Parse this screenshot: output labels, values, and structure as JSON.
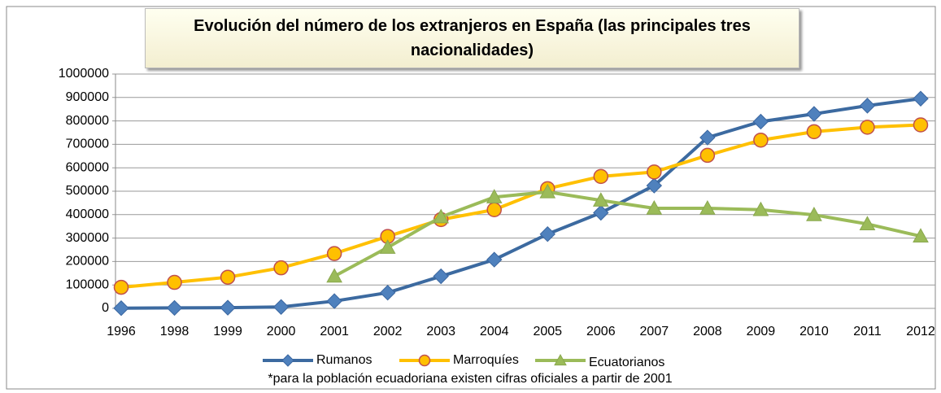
{
  "chart_data": {
    "type": "line",
    "title": "Evolución del número de los extranjeros en España (las principales tres nacionalidades)",
    "categories": [
      "1996",
      "1998",
      "1999",
      "2000",
      "2001",
      "2002",
      "2003",
      "2004",
      "2005",
      "2006",
      "2007",
      "2008",
      "2009",
      "2010",
      "2011",
      "2012"
    ],
    "series": [
      {
        "name": "Rumanos",
        "color": "#4f81bd",
        "marker": "diamond",
        "values": [
          1000,
          2000,
          3000,
          6000,
          31000,
          67000,
          137000,
          208000,
          317000,
          408000,
          524000,
          729000,
          797000,
          830000,
          865000,
          895000
        ]
      },
      {
        "name": "Marroquíes",
        "color": "#ffc000",
        "marker": "circle",
        "values": [
          90000,
          111000,
          133000,
          173000,
          234000,
          307000,
          379000,
          421000,
          511000,
          563000,
          582000,
          653000,
          718000,
          754000,
          773000,
          783000
        ]
      },
      {
        "name": "Ecuatorianos",
        "color": "#9bbb59",
        "marker": "triangle",
        "values": [
          null,
          null,
          null,
          null,
          137000,
          260000,
          390000,
          475000,
          497000,
          461000,
          427000,
          427000,
          421000,
          399000,
          360000,
          308000
        ]
      }
    ],
    "ylim": [
      0,
      1000000
    ],
    "yticks": [
      0,
      100000,
      200000,
      300000,
      400000,
      500000,
      600000,
      700000,
      800000,
      900000,
      1000000
    ],
    "grid": true,
    "legend": "bottom",
    "note": "*para la población ecuadoriana existen cifras oficiales a partir de 2001"
  }
}
